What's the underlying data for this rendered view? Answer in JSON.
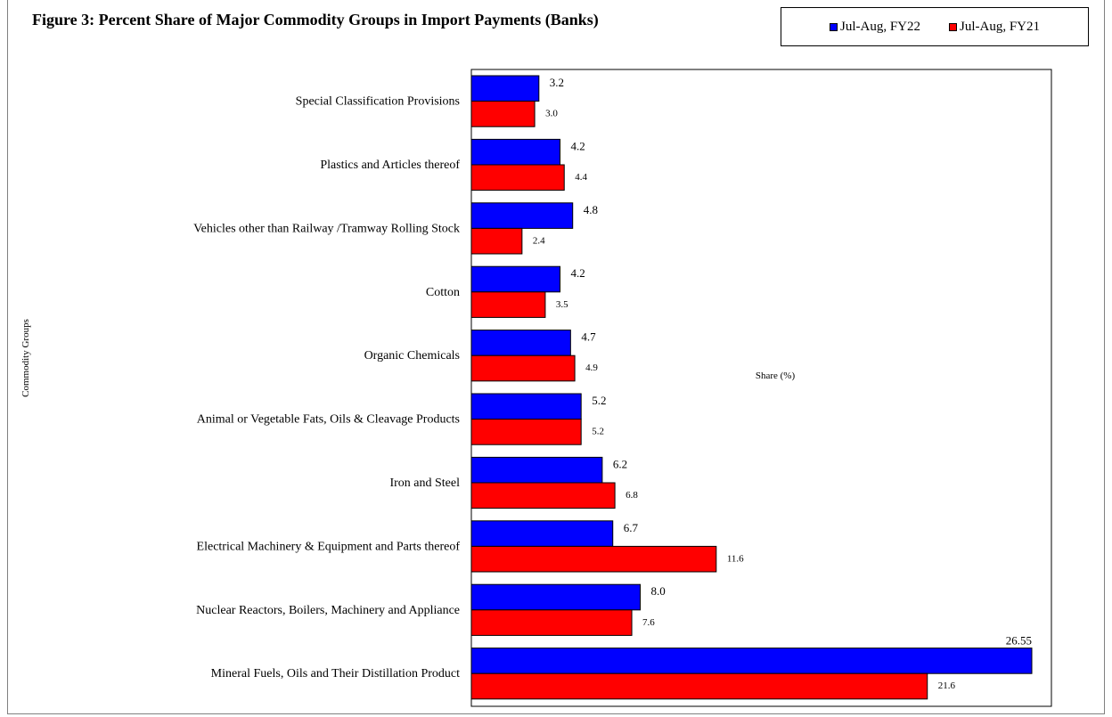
{
  "chart_data": {
    "type": "bar",
    "orientation": "horizontal",
    "title": "Figure 3: Percent Share of Major Commodity Groups in Import Payments (Banks)",
    "xlabel": "Share (%)",
    "ylabel": "Commodity Groups",
    "xlim": [
      0,
      27
    ],
    "grid": false,
    "legend_position": "top-right",
    "categories": [
      "Special Classification Provisions",
      "Plastics and Articles thereof",
      "Vehicles other than Railway /Tramway Rolling Stock",
      "Cotton",
      "Organic Chemicals",
      "Animal or Vegetable Fats, Oils & Cleavage Products",
      "Iron and Steel",
      "Electrical Machinery & Equipment and Parts thereof",
      "Nuclear Reactors, Boilers, Machinery and Appliance",
      "Mineral Fuels, Oils and Their Distillation Product"
    ],
    "series": [
      {
        "name": "Jul-Aug, FY22",
        "color": "#0000ff",
        "values": [
          3.2,
          4.2,
          4.8,
          4.2,
          4.7,
          5.2,
          6.2,
          6.7,
          8.0,
          26.55
        ],
        "labels": [
          "3.2",
          "4.2",
          "4.8",
          "4.2",
          "4.7",
          "5.2",
          "6.2",
          "6.7",
          "8.0",
          "26.55"
        ]
      },
      {
        "name": "Jul-Aug, FY21",
        "color": "#ff0000",
        "values": [
          3.0,
          4.4,
          2.4,
          3.5,
          4.9,
          5.2,
          6.8,
          11.6,
          7.6,
          21.6
        ],
        "labels": [
          "3.0",
          "4.4",
          "2.4",
          "3.5",
          "4.9",
          "5.2",
          "6.8",
          "11.6",
          "7.6",
          "21.6"
        ]
      }
    ]
  }
}
